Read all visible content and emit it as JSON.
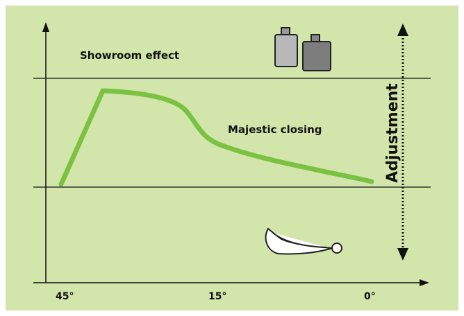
{
  "labels": {
    "top": "Showroom effect",
    "curve": "Majestic closing",
    "side": "Adjustment"
  },
  "x_axis": {
    "ticks": [
      "45°",
      "15°",
      "0°"
    ]
  }
}
